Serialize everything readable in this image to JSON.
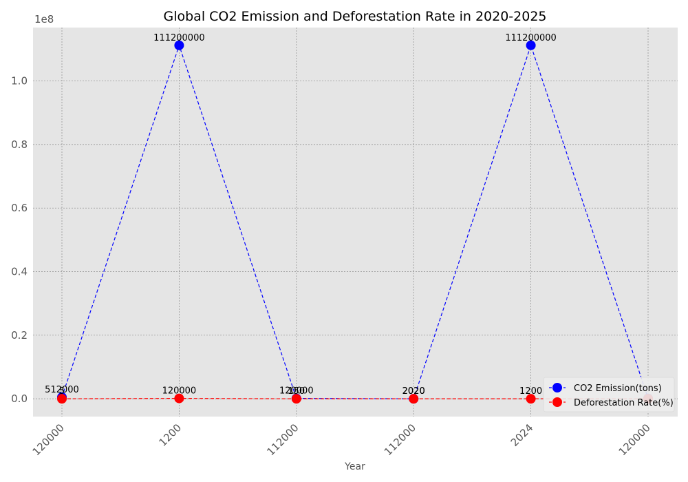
{
  "chart_data": {
    "type": "line",
    "title": "Global CO2 Emission and Deforestation Rate in 2020-2025",
    "xlabel": "Year",
    "ylabel": "",
    "categories": [
      "120000",
      "1200",
      "112000",
      "112000",
      "2024",
      "120000"
    ],
    "y_tick_labels": [
      "0.0",
      "0.2",
      "0.4",
      "0.6",
      "0.8",
      "1.0"
    ],
    "y_ticks": [
      0,
      20000000,
      40000000,
      60000000,
      80000000,
      100000000
    ],
    "y_exponent_label": "1e8",
    "ylim": [
      -5600000,
      116800000
    ],
    "grid": true,
    "legend_position": "bottom-right",
    "series": [
      {
        "name": "CO2 Emission(tons)",
        "color": "#0000ff",
        "line_style": "dashed",
        "marker": "circle",
        "values": [
          512000,
          111200000,
          120000,
          2020,
          111200000,
          120000
        ],
        "labels": [
          "512000",
          "111200000",
          "120000",
          "2020",
          "111200000",
          ""
        ]
      },
      {
        "name": "Deforestation Rate(%)",
        "color": "#ff0000",
        "line_style": "dashed",
        "marker": "circle",
        "values": [
          5,
          120000,
          150,
          2020,
          1200,
          12000
        ],
        "labels": [
          "5",
          "120000",
          "150",
          "2020",
          "1200",
          ""
        ]
      }
    ]
  }
}
